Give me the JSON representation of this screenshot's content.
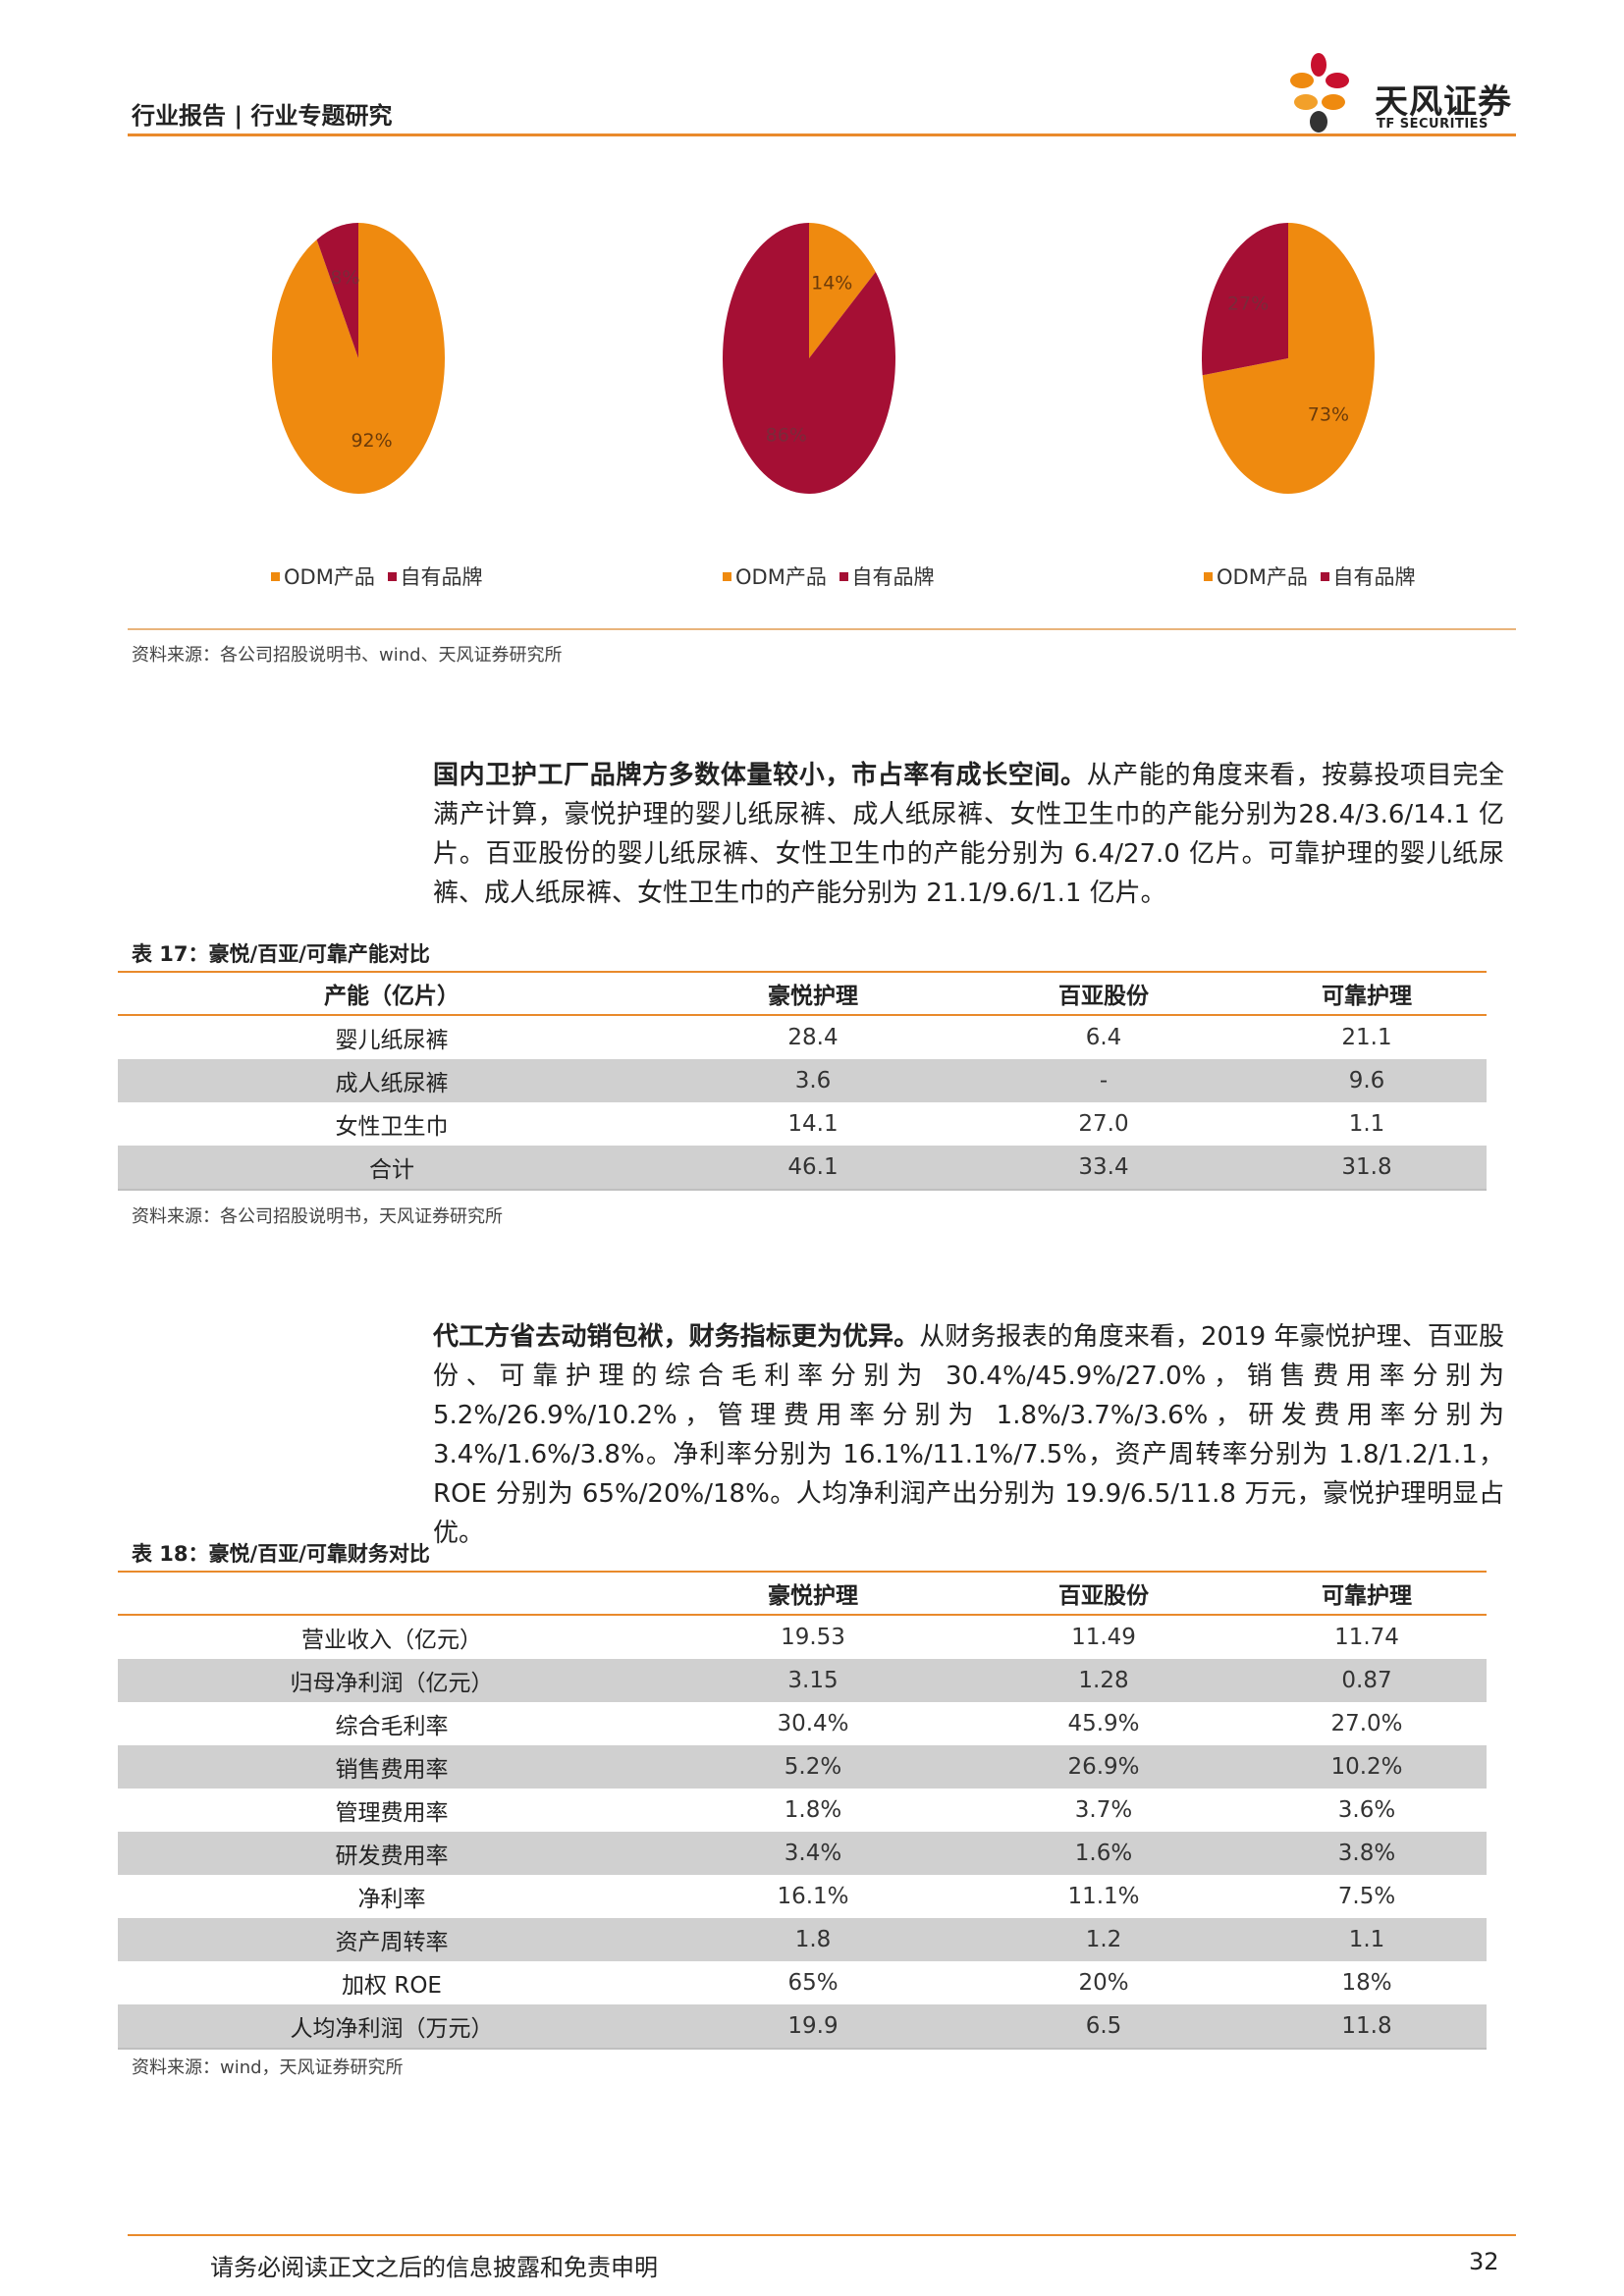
{
  "header": {
    "title": "行业报告 | 行业专题研究",
    "logo_text": "天风证券",
    "logo_sub": "TF SECURITIES"
  },
  "colors": {
    "odm": "#ef8a0f",
    "own": "#a50f34",
    "accent": "#e98a2b",
    "shade": "#d0d0d0"
  },
  "chart_data": [
    {
      "type": "pie",
      "labels": [
        "ODM产品",
        "自有品牌"
      ],
      "values": [
        92,
        8
      ],
      "data_labels": [
        "92%",
        "8%"
      ],
      "legend": [
        "ODM产品",
        "自有品牌"
      ],
      "legend_position": "bottom"
    },
    {
      "type": "pie",
      "labels": [
        "ODM产品",
        "自有品牌"
      ],
      "values": [
        14,
        86
      ],
      "data_labels": [
        "14%",
        "86%"
      ],
      "legend": [
        "ODM产品",
        "自有品牌"
      ],
      "legend_position": "bottom"
    },
    {
      "type": "pie",
      "labels": [
        "ODM产品",
        "自有品牌"
      ],
      "values": [
        73,
        27
      ],
      "data_labels": [
        "73%",
        "27%"
      ],
      "legend": [
        "ODM产品",
        "自有品牌"
      ],
      "legend_position": "bottom"
    }
  ],
  "source1": "资料来源：各公司招股说明书、wind、天风证券研究所",
  "para1": {
    "bold": "国内卫护工厂品牌方多数体量较小，市占率有成长空间。",
    "text": "从产能的角度来看，按募投项目完全满产计算，豪悦护理的婴儿纸尿裤、成人纸尿裤、女性卫生巾的产能分别为28.4/3.6/14.1 亿片。百亚股份的婴儿纸尿裤、女性卫生巾的产能分别为 6.4/27.0 亿片。可靠护理的婴儿纸尿裤、成人纸尿裤、女性卫生巾的产能分别为 21.1/9.6/1.1 亿片。"
  },
  "table17": {
    "caption": "表 17：豪悦/百亚/可靠产能对比",
    "headers": [
      "产能（亿片）",
      "豪悦护理",
      "百亚股份",
      "可靠护理"
    ],
    "rows": [
      [
        "婴儿纸尿裤",
        "28.4",
        "6.4",
        "21.1"
      ],
      [
        "成人纸尿裤",
        "3.6",
        "-",
        "9.6"
      ],
      [
        "女性卫生巾",
        "14.1",
        "27.0",
        "1.1"
      ],
      [
        "合计",
        "46.1",
        "33.4",
        "31.8"
      ]
    ]
  },
  "source2": "资料来源：各公司招股说明书，天风证券研究所",
  "para2": {
    "bold": "代工方省去动销包袱，财务指标更为优异。",
    "text": "从财务报表的角度来看，2019 年豪悦护理、百亚股份、可靠护理的综合毛利率分别为 30.4%/45.9%/27.0%，销售费用率分别为 5.2%/26.9%/10.2%，管理费用率分别为 1.8%/3.7%/3.6%，研发费用率分别为 3.4%/1.6%/3.8%。净利率分别为 16.1%/11.1%/7.5%，资产周转率分别为 1.8/1.2/1.1，ROE 分别为 65%/20%/18%。人均净利润产出分别为 19.9/6.5/11.8 万元，豪悦护理明显占优。"
  },
  "table18": {
    "caption": "表 18：豪悦/百亚/可靠财务对比",
    "headers": [
      "",
      "豪悦护理",
      "百亚股份",
      "可靠护理"
    ],
    "rows": [
      [
        "营业收入（亿元）",
        "19.53",
        "11.49",
        "11.74"
      ],
      [
        "归母净利润（亿元）",
        "3.15",
        "1.28",
        "0.87"
      ],
      [
        "综合毛利率",
        "30.4%",
        "45.9%",
        "27.0%"
      ],
      [
        "销售费用率",
        "5.2%",
        "26.9%",
        "10.2%"
      ],
      [
        "管理费用率",
        "1.8%",
        "3.7%",
        "3.6%"
      ],
      [
        "研发费用率",
        "3.4%",
        "1.6%",
        "3.8%"
      ],
      [
        "净利率",
        "16.1%",
        "11.1%",
        "7.5%"
      ],
      [
        "资产周转率",
        "1.8",
        "1.2",
        "1.1"
      ],
      [
        "加权 ROE",
        "65%",
        "20%",
        "18%"
      ],
      [
        "人均净利润（万元）",
        "19.9",
        "6.5",
        "11.8"
      ]
    ]
  },
  "source3": "资料来源：wind，天风证券研究所",
  "footer": {
    "text": "请务必阅读正文之后的信息披露和免责申明",
    "page": "32"
  }
}
